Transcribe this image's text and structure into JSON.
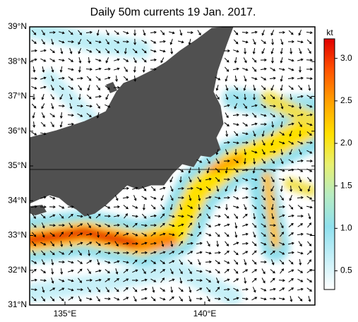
{
  "title": "Daily 50m currents 19 Jan. 2017.",
  "map": {
    "lat_labels": [
      "39°N",
      "38°N",
      "37°N",
      "36°N",
      "35°N",
      "34°N",
      "33°N",
      "32°N",
      "31°N"
    ],
    "lon_labels": [
      "135°E",
      "140°E"
    ]
  },
  "colorbar": {
    "unit": "kt",
    "lim": [
      0.28,
      3.23
    ],
    "ticks": [
      {
        "value": 0.5,
        "label": "0.5"
      },
      {
        "value": 1.0,
        "label": "1.0"
      },
      {
        "value": 1.5,
        "label": "1.5"
      },
      {
        "value": 2.0,
        "label": "2.0"
      },
      {
        "value": 2.5,
        "label": "2.5"
      },
      {
        "value": 3.0,
        "label": "3.0"
      }
    ]
  }
}
